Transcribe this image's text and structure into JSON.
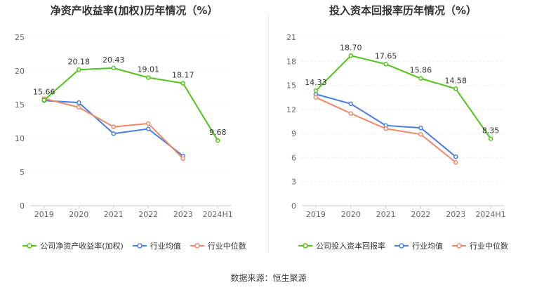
{
  "chart_data": [
    {
      "type": "line",
      "title": "净资产收益率(加权)历年情况（%）",
      "categories": [
        "2019",
        "2020",
        "2021",
        "2022",
        "2023",
        "2024H1"
      ],
      "ylim": [
        0,
        25
      ],
      "yticks": [
        "0",
        "5",
        "10",
        "15",
        "20",
        "25"
      ],
      "grid": true,
      "legend_position": "bottom",
      "series": [
        {
          "name": "公司净资产收益率(加权)",
          "color": "#52c41a",
          "values": [
            15.66,
            20.18,
            20.43,
            19.01,
            18.17,
            9.68
          ],
          "labels": [
            "15.66",
            "20.18",
            "20.43",
            "19.01",
            "18.17",
            "9.68"
          ]
        },
        {
          "name": "行业均值",
          "color": "#4a7fe0",
          "values": [
            15.6,
            15.3,
            10.7,
            11.4,
            7.4,
            null
          ]
        },
        {
          "name": "行业中位数",
          "color": "#f0896a",
          "values": [
            15.9,
            14.6,
            11.7,
            12.2,
            7.0,
            null
          ]
        }
      ]
    },
    {
      "type": "line",
      "title": "投入资本回报率历年情况（%）",
      "categories": [
        "2019",
        "2020",
        "2021",
        "2022",
        "2023",
        "2024H1"
      ],
      "ylim": [
        0,
        21
      ],
      "yticks": [
        "0",
        "3",
        "6",
        "9",
        "12",
        "15",
        "18",
        "21"
      ],
      "grid": true,
      "legend_position": "bottom",
      "series": [
        {
          "name": "公司投入资本回报率",
          "color": "#52c41a",
          "values": [
            14.33,
            18.7,
            17.65,
            15.86,
            14.58,
            8.35
          ],
          "labels": [
            "14.33",
            "18.70",
            "17.65",
            "15.86",
            "14.58",
            "8.35"
          ]
        },
        {
          "name": "行业均值",
          "color": "#4a7fe0",
          "values": [
            13.9,
            12.7,
            10.0,
            9.7,
            6.1,
            null
          ]
        },
        {
          "name": "行业中位数",
          "color": "#f0896a",
          "values": [
            13.5,
            11.5,
            9.6,
            8.9,
            5.4,
            null
          ]
        }
      ]
    }
  ],
  "footer": {
    "source": "数据来源：恒生聚源"
  }
}
